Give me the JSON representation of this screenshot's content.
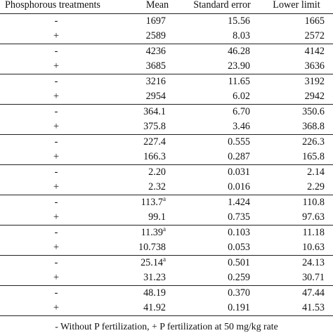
{
  "table": {
    "headers": [
      "Phosphorous treatments",
      "Mean",
      "Standard error",
      "Lower limit"
    ],
    "rows": [
      {
        "treatment": "-",
        "mean": "1697",
        "sup": "",
        "se": "15.56",
        "lower": "1665"
      },
      {
        "treatment": "+",
        "mean": "2589",
        "sup": "",
        "se": "8.03",
        "lower": "2572"
      },
      {
        "treatment": "-",
        "mean": "4236",
        "sup": "",
        "se": "46.28",
        "lower": "4142"
      },
      {
        "treatment": "+",
        "mean": "3685",
        "sup": "",
        "se": "23.90",
        "lower": "3636"
      },
      {
        "treatment": "-",
        "mean": "3216",
        "sup": "",
        "se": "11.65",
        "lower": "3192"
      },
      {
        "treatment": "+",
        "mean": "2954",
        "sup": "",
        "se": "6.02",
        "lower": "2942"
      },
      {
        "treatment": "-",
        "mean": "364.1",
        "sup": "",
        "se": "6.70",
        "lower": "350.6"
      },
      {
        "treatment": "+",
        "mean": "375.8",
        "sup": "",
        "se": "3.46",
        "lower": "368.8"
      },
      {
        "treatment": "-",
        "mean": "227.4",
        "sup": "",
        "se": "0.555",
        "lower": "226.3"
      },
      {
        "treatment": "+",
        "mean": "166.3",
        "sup": "",
        "se": "0.287",
        "lower": "165.8"
      },
      {
        "treatment": "-",
        "mean": "2.20",
        "sup": "",
        "se": "0.031",
        "lower": "2.14"
      },
      {
        "treatment": "+",
        "mean": "2.32",
        "sup": "",
        "se": "0.016",
        "lower": "2.29"
      },
      {
        "treatment": "-",
        "mean": "113.7",
        "sup": "a",
        "se": "1.424",
        "lower": "110.8"
      },
      {
        "treatment": "+",
        "mean": "99.1",
        "sup": "",
        "se": "0.735",
        "lower": "97.63"
      },
      {
        "treatment": "-",
        "mean": "11.39",
        "sup": "a",
        "se": "0.103",
        "lower": "11.18"
      },
      {
        "treatment": "+",
        "mean": "10.738",
        "sup": "",
        "se": "0.053",
        "lower": "10.63"
      },
      {
        "treatment": "-",
        "mean": "25.14",
        "sup": "a",
        "se": "0.501",
        "lower": "24.13"
      },
      {
        "treatment": "+",
        "mean": "31.23",
        "sup": "",
        "se": "0.259",
        "lower": "30.71"
      },
      {
        "treatment": "-",
        "mean": "48.19",
        "sup": "",
        "se": "0.370",
        "lower": "47.44"
      },
      {
        "treatment": "+",
        "mean": "41.92",
        "sup": "",
        "se": "0.191",
        "lower": "41.53"
      }
    ]
  },
  "footnote": "- Without P fertilization, + P fertilization at 50 mg/kg rate"
}
